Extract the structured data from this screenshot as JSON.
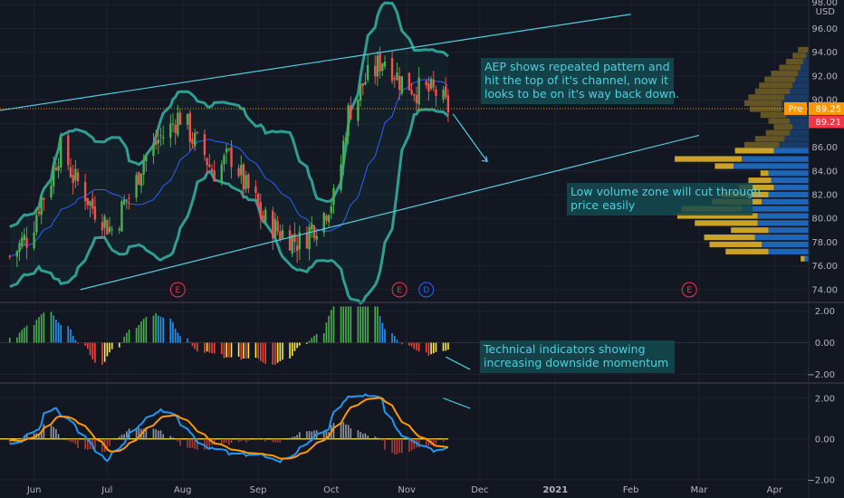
{
  "chart_data": [
    {
      "type": "candlestick",
      "panel": "price",
      "x_ticks": [
        "Jun",
        "Jul",
        "Aug",
        "Sep",
        "Oct",
        "Nov",
        "Dec",
        "2021",
        "Feb",
        "Mar",
        "Apr"
      ],
      "y_ticks": [
        "98.00",
        "96.00",
        "94.00",
        "92.00",
        "90.00",
        "88.00",
        "86.00",
        "84.00",
        "82.00",
        "80.00",
        "78.00",
        "76.00",
        "74.00"
      ],
      "y_unit": "USD",
      "ylim": [
        73,
        98.4
      ],
      "close_path": [
        [
          "May 22",
          76.8
        ],
        [
          "May 29",
          78.3
        ],
        [
          "Jun 5",
          81.9
        ],
        [
          "Jun 12",
          85.7
        ],
        [
          "Jun 19",
          83.0
        ],
        [
          "Jun 26",
          80.8
        ],
        [
          "Jul 3",
          79.1
        ],
        [
          "Jul 10",
          81.8
        ],
        [
          "Jul 17",
          85.2
        ],
        [
          "Jul 24",
          87.0
        ],
        [
          "Jul 31",
          88.6
        ],
        [
          "Aug 7",
          86.3
        ],
        [
          "Aug 14",
          84.0
        ],
        [
          "Aug 21",
          85.2
        ],
        [
          "Aug 28",
          82.4
        ],
        [
          "Sep 4",
          79.8
        ],
        [
          "Sep 11",
          78.8
        ],
        [
          "Sep 18",
          78.0
        ],
        [
          "Sep 25",
          79.6
        ],
        [
          "Oct 2",
          81.6
        ],
        [
          "Oct 9",
          89.3
        ],
        [
          "Oct 16",
          91.8
        ],
        [
          "Oct 23",
          93.5
        ],
        [
          "Oct 30",
          91.6
        ],
        [
          "Nov 6",
          90.8
        ],
        [
          "Nov 13",
          90.6
        ],
        [
          "Nov 18",
          89.3
        ]
      ],
      "bollinger_bands": true,
      "price_labels": [
        {
          "text": "Pre",
          "value": "89.25",
          "color": "#ff9800"
        },
        {
          "text": "",
          "value": "89.21",
          "color": "#f23645"
        }
      ],
      "events": [
        {
          "label": "E",
          "date": "Jul 30",
          "color": "#f23645"
        },
        {
          "label": "E",
          "date": "Oct 29",
          "color": "#f23645"
        },
        {
          "label": "D",
          "date": "Nov 9",
          "color": "#2962ff"
        },
        {
          "label": "E",
          "date": "Feb 25",
          "color": "#f23645"
        }
      ],
      "volume_profile": true,
      "annotations": [
        {
          "lines": [
            "AEP shows repeated pattern and",
            "hit the top of it's channel, now it",
            "looks to be on it's way back down."
          ]
        },
        {
          "lines": [
            "Low volume zone will cut through",
            "price easily"
          ]
        }
      ]
    },
    {
      "type": "bar",
      "panel": "momentum histogram",
      "y_ticks": [
        "2.00",
        "0.00",
        "−2.00"
      ],
      "ylim": [
        -2.5,
        2.5
      ],
      "annotations": [
        {
          "lines": [
            "Technical indicators showing",
            "increasing downside momentum"
          ]
        }
      ]
    },
    {
      "type": "line",
      "panel": "MACD",
      "y_ticks": [
        "2.00",
        "0.00",
        "−2.00"
      ],
      "ylim": [
        -2.1,
        2.7
      ]
    }
  ]
}
